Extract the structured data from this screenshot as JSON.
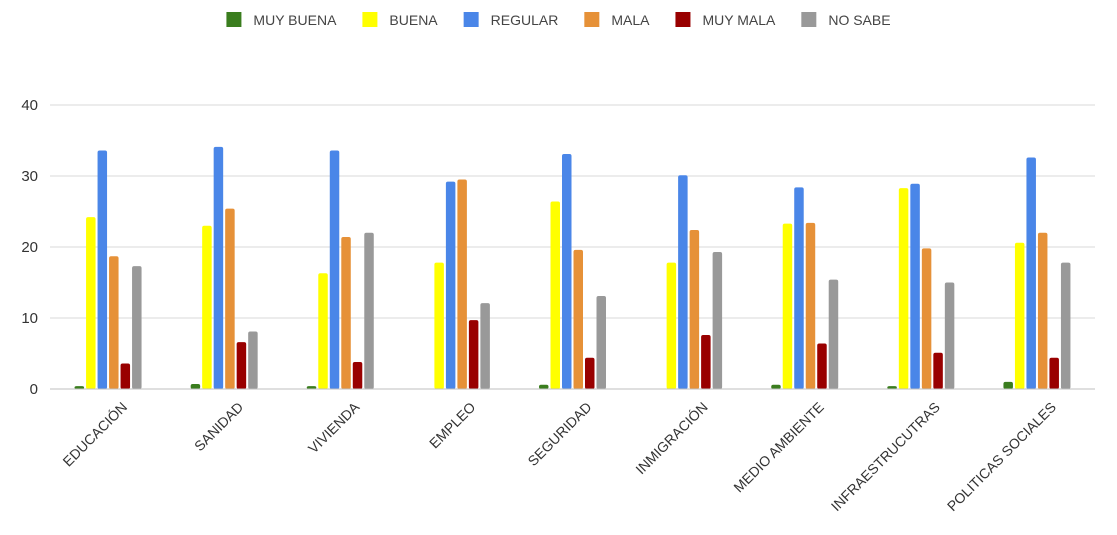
{
  "chart_data": {
    "type": "bar",
    "title": "",
    "xlabel": "",
    "ylabel": "",
    "ylim": [
      0,
      40
    ],
    "yticks": [
      0,
      10,
      20,
      30,
      40
    ],
    "grid": true,
    "legend_position": "top",
    "categories": [
      "EDUCACIÓN",
      "SANIDAD",
      "VIVIENDA",
      "EMPLEO",
      "SEGURIDAD",
      "INMIGRACIÓN",
      "MEDIO AMBIENTE",
      "INFRAESTRUCUTRAS",
      "POLITICAS SOCIALES"
    ],
    "series": [
      {
        "name": "MUY BUENA",
        "color": "#3a7d1e",
        "values": [
          0.4,
          0.7,
          0.4,
          0,
          0.6,
          0,
          0.6,
          0.4,
          1.0
        ]
      },
      {
        "name": "BUENA",
        "color": "#ffff00",
        "values": [
          24.2,
          23.0,
          16.3,
          17.8,
          26.4,
          17.8,
          23.3,
          28.3,
          20.6
        ]
      },
      {
        "name": "REGULAR",
        "color": "#4a86e8",
        "values": [
          33.6,
          34.1,
          33.6,
          29.2,
          33.1,
          30.1,
          28.4,
          28.9,
          32.6
        ]
      },
      {
        "name": "MALA",
        "color": "#e69138",
        "values": [
          18.7,
          25.4,
          21.4,
          29.5,
          19.6,
          22.4,
          23.4,
          19.8,
          22.0
        ]
      },
      {
        "name": "MUY MALA",
        "color": "#990000",
        "values": [
          3.6,
          6.6,
          3.8,
          9.7,
          4.4,
          7.6,
          6.4,
          5.1,
          4.4
        ]
      },
      {
        "name": "NO SABE",
        "color": "#999999",
        "values": [
          17.3,
          8.1,
          22.0,
          12.1,
          13.1,
          19.3,
          15.4,
          15.0,
          17.8
        ]
      }
    ]
  }
}
